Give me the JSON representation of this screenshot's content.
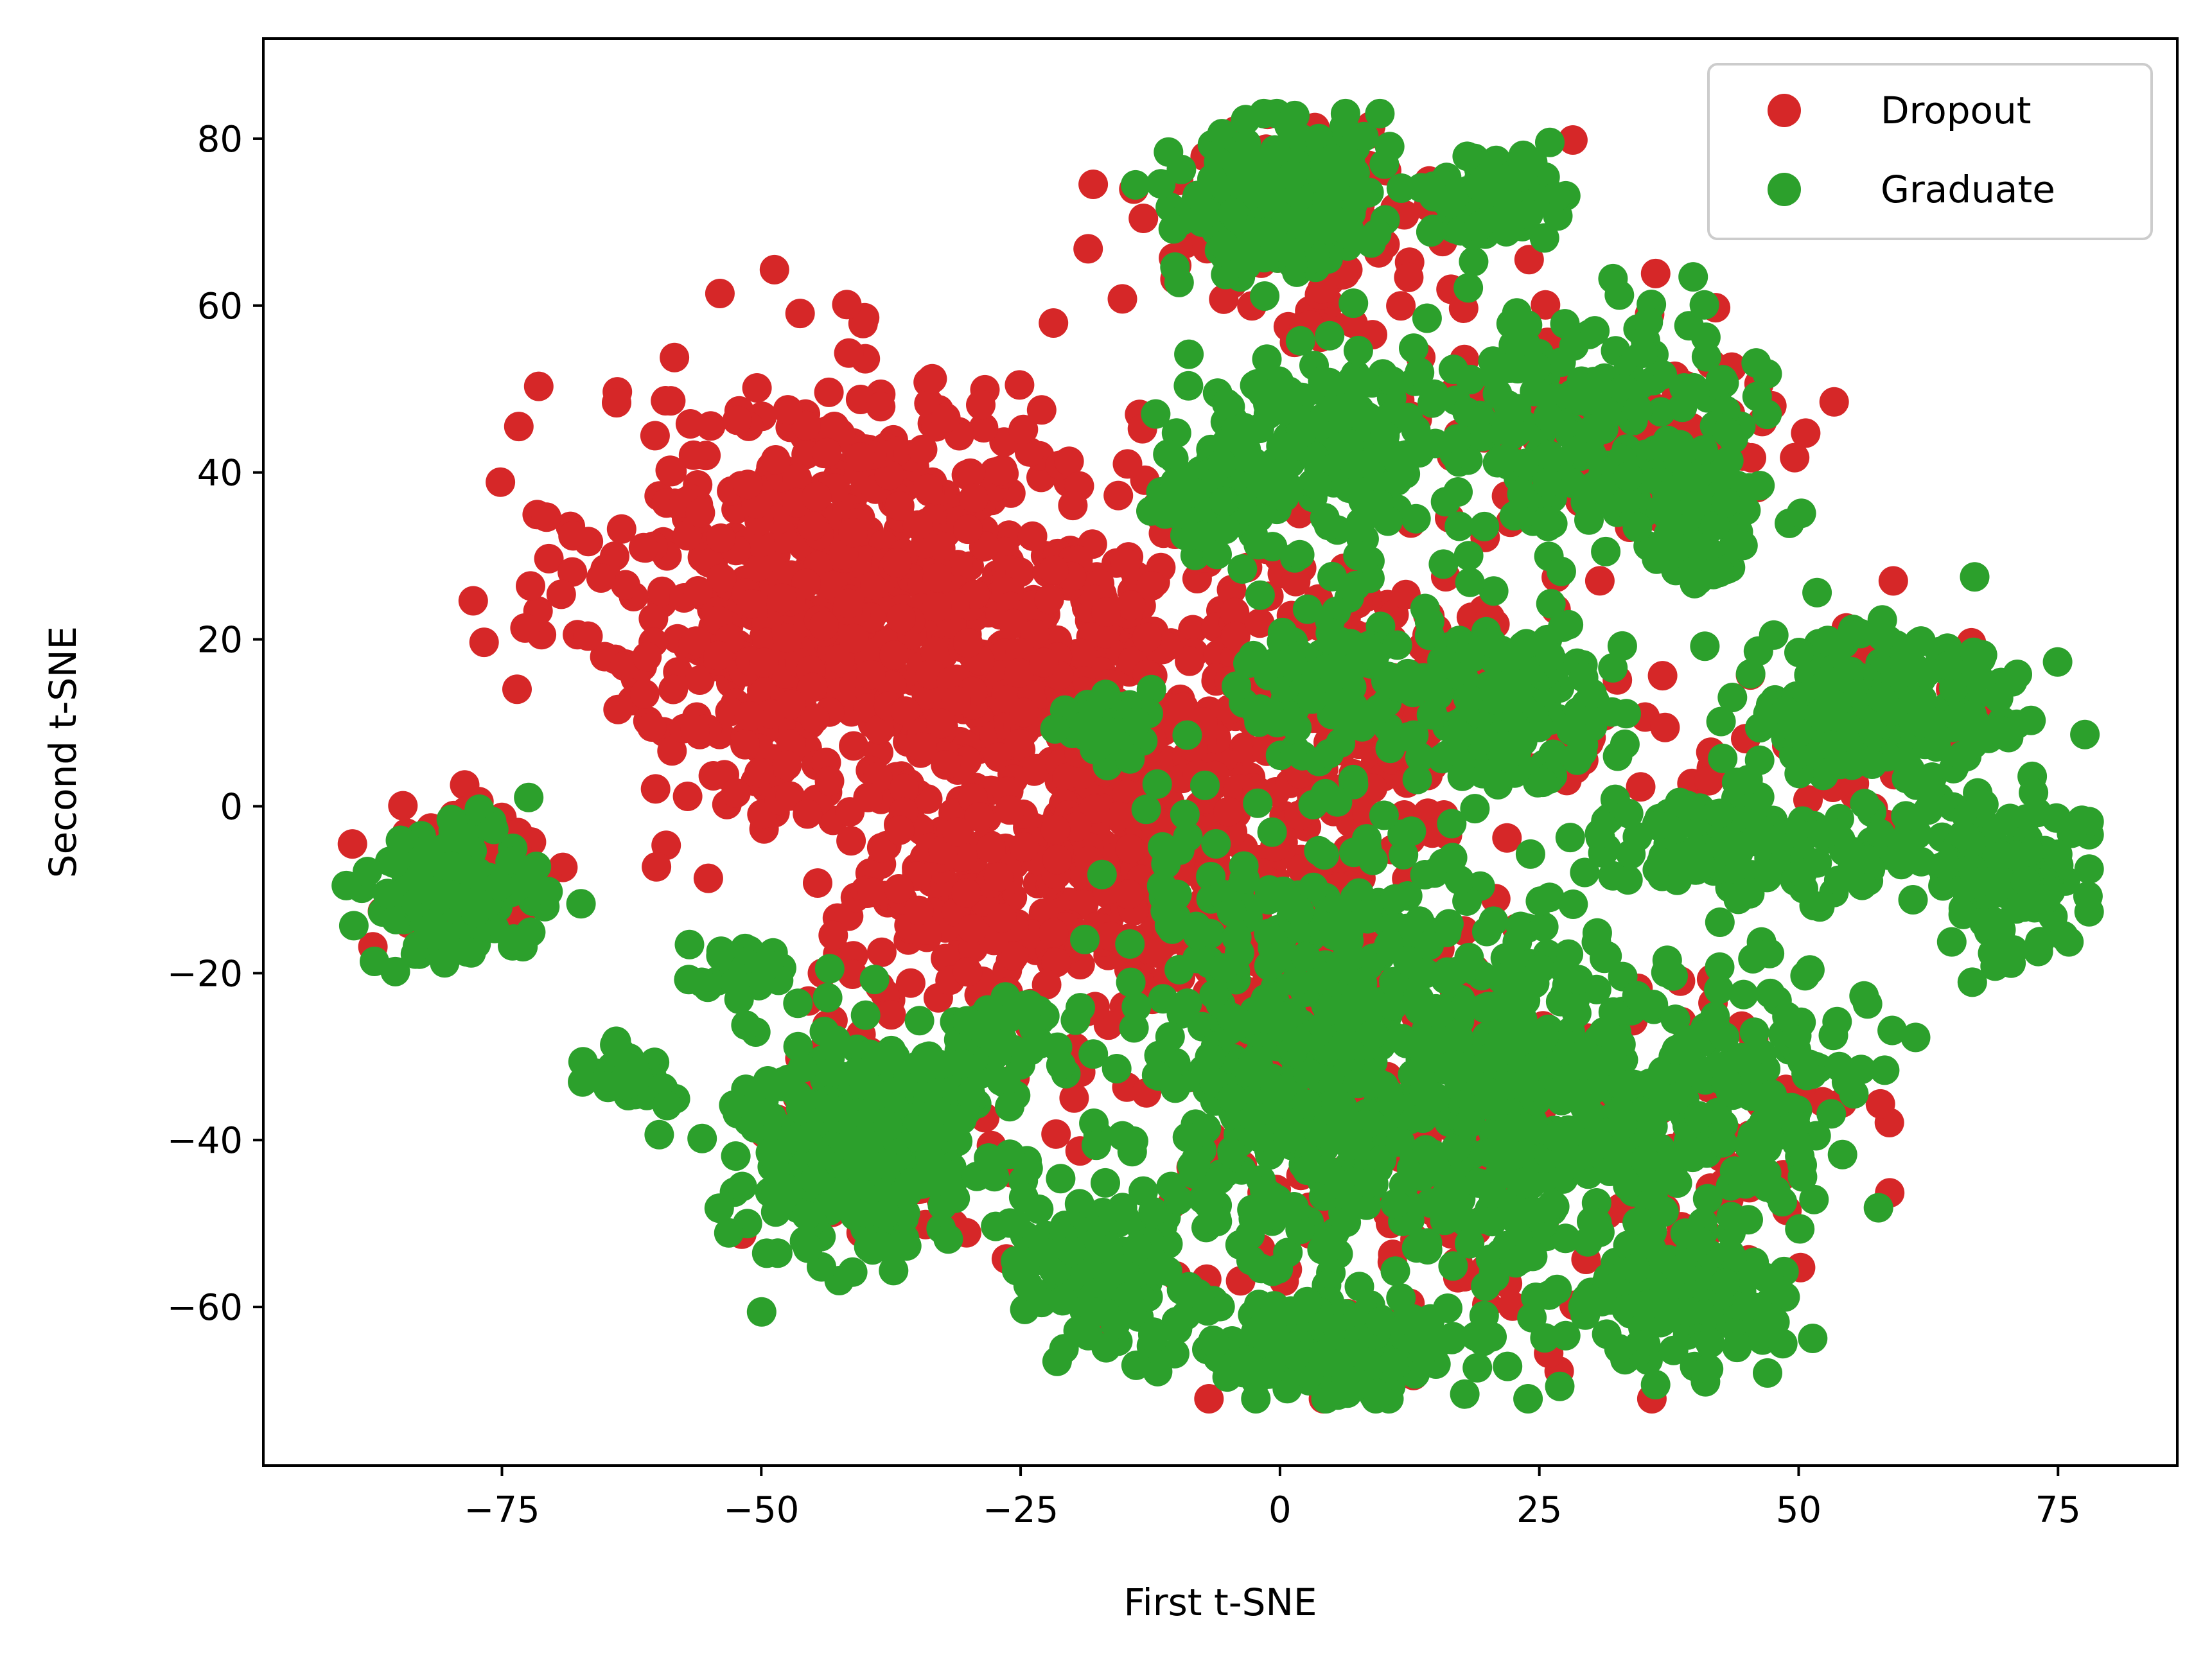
{
  "chart_data": {
    "type": "scatter",
    "title": "",
    "xlabel": "First t-SNE",
    "ylabel": "Second t-SNE",
    "xlim": [
      -98,
      86.5
    ],
    "ylim": [
      -79,
      92
    ],
    "x_ticks": [
      -75,
      -50,
      -25,
      0,
      25,
      50,
      75
    ],
    "x_tick_labels": [
      "−75",
      "−50",
      "−25",
      "0",
      "25",
      "50",
      "75"
    ],
    "y_ticks": [
      -60,
      -40,
      -20,
      0,
      20,
      40,
      60,
      80
    ],
    "y_tick_labels": [
      "−60",
      "−40",
      "−20",
      "0",
      "20",
      "40",
      "60",
      "80"
    ],
    "grid": false,
    "legend": {
      "position": "top-right",
      "entries": [
        "Dropout",
        "Graduate"
      ]
    },
    "series": [
      {
        "name": "Dropout",
        "color": "#d62728",
        "clusters": [
          {
            "cx": -40,
            "cy": 25,
            "sx": 13,
            "sy": 13,
            "n": 760
          },
          {
            "cx": -18,
            "cy": 10,
            "sx": 9,
            "sy": 11,
            "n": 260
          },
          {
            "cx": -8,
            "cy": -12,
            "sx": 8,
            "sy": 9,
            "n": 200
          },
          {
            "cx": -30,
            "cy": -12,
            "sx": 8,
            "sy": 7,
            "n": 150
          },
          {
            "cx": 5,
            "cy": 12,
            "sx": 9,
            "sy": 8,
            "n": 180
          },
          {
            "cx": 3,
            "cy": 70,
            "sx": 8,
            "sy": 7,
            "n": 110
          },
          {
            "cx": 30,
            "cy": 45,
            "sx": 10,
            "sy": 8,
            "n": 120
          },
          {
            "cx": -40,
            "cy": -40,
            "sx": 6,
            "sy": 7,
            "n": 90
          },
          {
            "cx": -78,
            "cy": -8,
            "sx": 5,
            "sy": 5,
            "n": 70
          },
          {
            "cx": 10,
            "cy": -40,
            "sx": 12,
            "sy": 14,
            "n": 180
          },
          {
            "cx": 40,
            "cy": -40,
            "sx": 8,
            "sy": 10,
            "n": 70
          },
          {
            "cx": 55,
            "cy": 10,
            "sx": 8,
            "sy": 6,
            "n": 60
          },
          {
            "cx": 20,
            "cy": 10,
            "sx": 6,
            "sy": 6,
            "n": 60
          }
        ]
      },
      {
        "name": "Graduate",
        "color": "#2ca02c",
        "clusters": [
          {
            "cx": -80,
            "cy": -10,
            "sx": 4,
            "sy": 4,
            "n": 130
          },
          {
            "cx": -63,
            "cy": -32,
            "sx": 2,
            "sy": 2,
            "n": 35
          },
          {
            "cx": -40,
            "cy": -40,
            "sx": 6,
            "sy": 7,
            "n": 300
          },
          {
            "cx": -17,
            "cy": 10,
            "sx": 2,
            "sy": 2,
            "n": 45
          },
          {
            "cx": 0,
            "cy": 72,
            "sx": 5,
            "sy": 5,
            "n": 180
          },
          {
            "cx": 20,
            "cy": 73,
            "sx": 3,
            "sy": 3,
            "n": 80
          },
          {
            "cx": 3,
            "cy": 42,
            "sx": 6,
            "sy": 6,
            "n": 150
          },
          {
            "cx": -6,
            "cy": 38,
            "sx": 3,
            "sy": 3,
            "n": 60
          },
          {
            "cx": 30,
            "cy": 45,
            "sx": 9,
            "sy": 7,
            "n": 220
          },
          {
            "cx": 22,
            "cy": 13,
            "sx": 5,
            "sy": 5,
            "n": 150
          },
          {
            "cx": 5,
            "cy": 17,
            "sx": 4,
            "sy": 4,
            "n": 80
          },
          {
            "cx": 5,
            "cy": -30,
            "sx": 11,
            "sy": 14,
            "n": 560
          },
          {
            "cx": 25,
            "cy": -35,
            "sx": 6,
            "sy": 12,
            "n": 220
          },
          {
            "cx": 5,
            "cy": -65,
            "sx": 6,
            "sy": 3,
            "n": 180
          },
          {
            "cx": -17,
            "cy": -55,
            "sx": 5,
            "sy": 5,
            "n": 100
          },
          {
            "cx": 40,
            "cy": -60,
            "sx": 5,
            "sy": 4,
            "n": 120
          },
          {
            "cx": 43,
            "cy": -35,
            "sx": 7,
            "sy": 8,
            "n": 180
          },
          {
            "cx": 45,
            "cy": -5,
            "sx": 8,
            "sy": 3,
            "n": 140
          },
          {
            "cx": 58,
            "cy": 12,
            "sx": 7,
            "sy": 5,
            "n": 200
          },
          {
            "cx": 70,
            "cy": -8,
            "sx": 4,
            "sy": 5,
            "n": 110
          },
          {
            "cx": -28,
            "cy": -28,
            "sx": 3,
            "sy": 3,
            "n": 40
          },
          {
            "cx": -52,
            "cy": -20,
            "sx": 3,
            "sy": 2,
            "n": 30
          },
          {
            "cx": 40,
            "cy": 35,
            "sx": 4,
            "sy": 4,
            "n": 60
          }
        ]
      }
    ]
  }
}
